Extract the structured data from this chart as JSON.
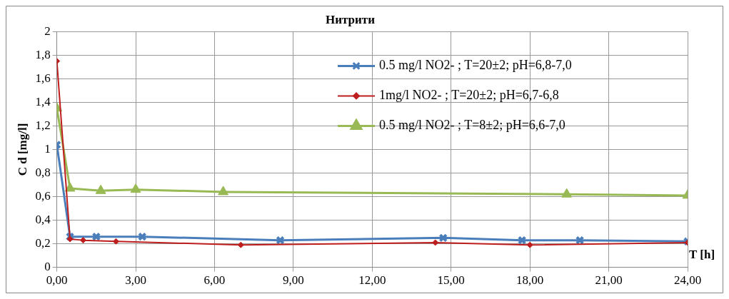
{
  "chart_data": {
    "type": "line",
    "title": "Нитрити",
    "xlabel": "T [h]",
    "ylabel": "C d [mg/l]",
    "xlim": [
      0,
      24
    ],
    "xticks": [
      {
        "value": 0,
        "label": "0,00"
      },
      {
        "value": 3,
        "label": "3,00"
      },
      {
        "value": 6,
        "label": "6,00"
      },
      {
        "value": 9,
        "label": "9,00"
      },
      {
        "value": 12,
        "label": "12,00"
      },
      {
        "value": 15,
        "label": "15,00"
      },
      {
        "value": 18,
        "label": "18,00"
      },
      {
        "value": 21,
        "label": "21,00"
      },
      {
        "value": 24,
        "label": "24,00"
      }
    ],
    "ylim": [
      0,
      2
    ],
    "yticks": [
      0,
      {
        "value": 0.2,
        "label": "0,2"
      },
      {
        "value": 0.4,
        "label": "0,4"
      },
      {
        "value": 0.6,
        "label": "0,6"
      },
      {
        "value": 0.8,
        "label": "0,8"
      },
      1,
      {
        "value": 1.2,
        "label": "1,2"
      },
      {
        "value": 1.4,
        "label": "1,4"
      },
      {
        "value": 1.6,
        "label": "1,6"
      },
      {
        "value": 1.8,
        "label": "1,8"
      },
      2
    ],
    "grid": true,
    "legend": "top right",
    "line_style": "solid",
    "series": [
      {
        "name": "0.5 mg/l NO2- ; T=20±2; pH=6,8-7,0",
        "color": "#4a7ebb",
        "marker": "cross",
        "x": [
          0,
          0.5,
          1.5,
          3.25,
          8.5,
          14.7,
          17.7,
          19.9,
          24
        ],
        "values": [
          1.04,
          0.26,
          0.26,
          0.26,
          0.23,
          0.25,
          0.23,
          0.23,
          0.22
        ]
      },
      {
        "name": "1mg/l NO2- ; T=20±2; pH=6,7-6,8",
        "color": "#be1e1e",
        "marker": "diamond",
        "x": [
          0,
          0.5,
          1,
          2.25,
          7,
          14.4,
          18,
          24
        ],
        "values": [
          1.75,
          0.24,
          0.23,
          0.22,
          0.19,
          0.21,
          0.19,
          0.21
        ]
      },
      {
        "name": "0.5 mg/l NO2- ; T=8±2; pH=6,6-7,0",
        "color": "#98b954",
        "marker": "triangle",
        "x": [
          0,
          0.5,
          1.67,
          3,
          6.33,
          19.4,
          24
        ],
        "values": [
          1.35,
          0.67,
          0.65,
          0.66,
          0.64,
          0.62,
          0.61
        ]
      }
    ]
  }
}
